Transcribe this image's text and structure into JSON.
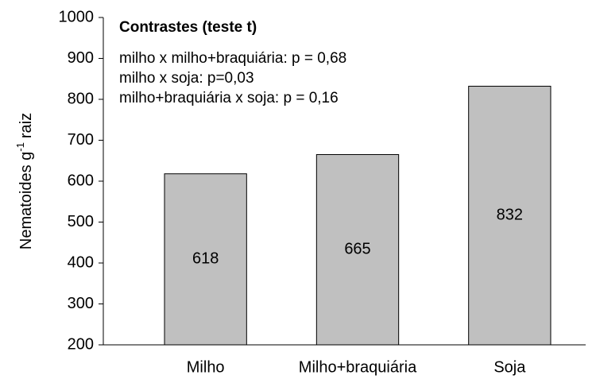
{
  "chart_data": {
    "type": "bar",
    "ylabel": {
      "text": "Nematoides g",
      "superscript": "-1",
      "suffix": "raiz"
    },
    "annotation": {
      "title": "Contrastes (teste t)",
      "lines": [
        "milho x milho+braquiária: p = 0,68",
        "milho x soja:  p=0,03",
        "milho+braquiária x soja: p = 0,16"
      ]
    },
    "categories": [
      "Milho",
      "Milho+braquiária",
      "Soja"
    ],
    "values": [
      618,
      665,
      832
    ],
    "color": "#c0c0c0",
    "ylim": [
      200,
      1000
    ],
    "yticks": [
      200,
      300,
      400,
      500,
      600,
      700,
      800,
      900,
      1000
    ]
  }
}
